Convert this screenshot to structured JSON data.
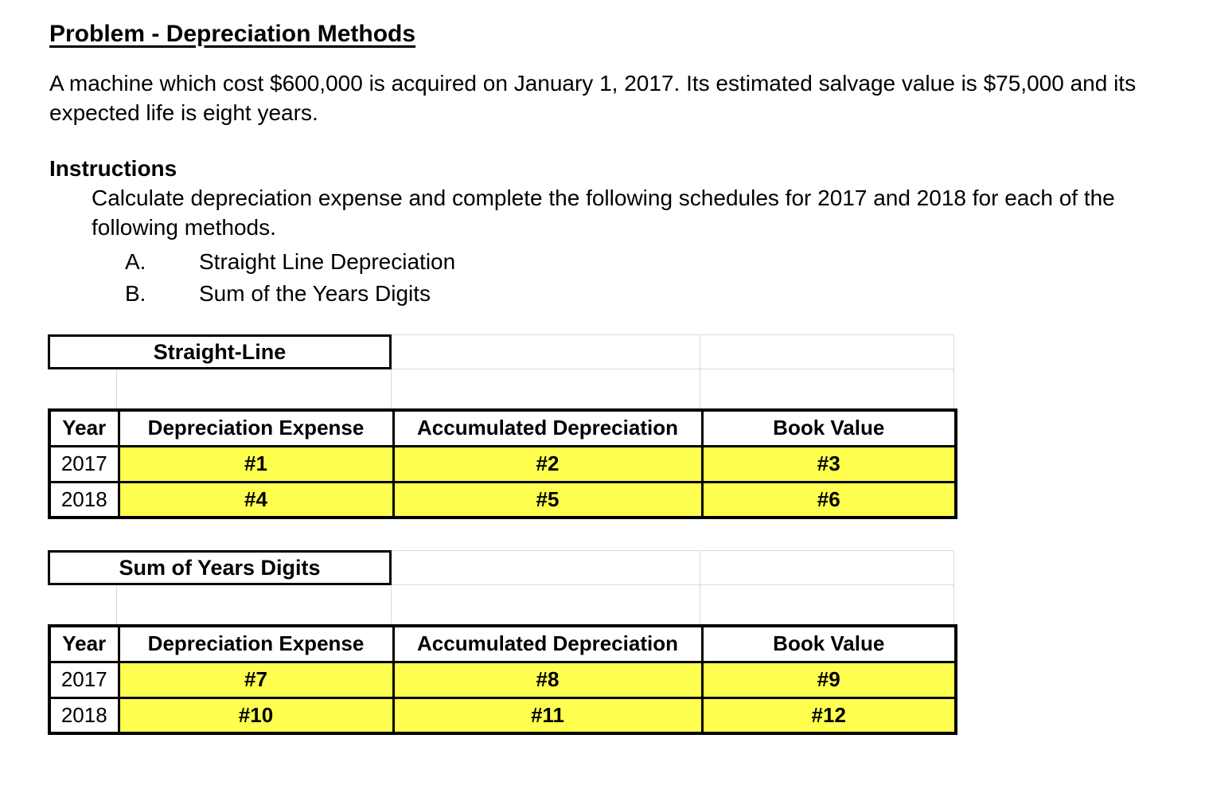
{
  "document": {
    "title": "Problem - Depreciation Methods",
    "problem_statement": "A machine which cost $600,000 is acquired on January 1, 2017. Its estimated salvage value is $75,000 and its expected life is eight years.",
    "instructions": {
      "heading": "Instructions",
      "body": "Calculate depreciation expense and complete the following schedules for 2017 and 2018 for each of the following methods.",
      "methods": [
        {
          "label": "A.",
          "name": "Straight Line Depreciation"
        },
        {
          "label": "B.",
          "name": "Sum of the Years Digits"
        }
      ]
    }
  },
  "tables": [
    {
      "title": "Straight-Line",
      "columns": [
        "Year",
        "Depreciation Expense",
        "Accumulated Depreciation",
        "Book Value"
      ],
      "rows": [
        {
          "year": "2017",
          "depreciation_expense": "#1",
          "accumulated_depreciation": "#2",
          "book_value": "#3"
        },
        {
          "year": "2018",
          "depreciation_expense": "#4",
          "accumulated_depreciation": "#5",
          "book_value": "#6"
        }
      ]
    },
    {
      "title": "Sum of Years Digits",
      "columns": [
        "Year",
        "Depreciation Expense",
        "Accumulated Depreciation",
        "Book Value"
      ],
      "rows": [
        {
          "year": "2017",
          "depreciation_expense": "#7",
          "accumulated_depreciation": "#8",
          "book_value": "#9"
        },
        {
          "year": "2018",
          "depreciation_expense": "#10",
          "accumulated_depreciation": "#11",
          "book_value": "#12"
        }
      ]
    }
  ],
  "colors": {
    "highlight_yellow": "#FFFF4F",
    "gridline_gray": "#D9D9D9",
    "table_border": "#000000"
  }
}
